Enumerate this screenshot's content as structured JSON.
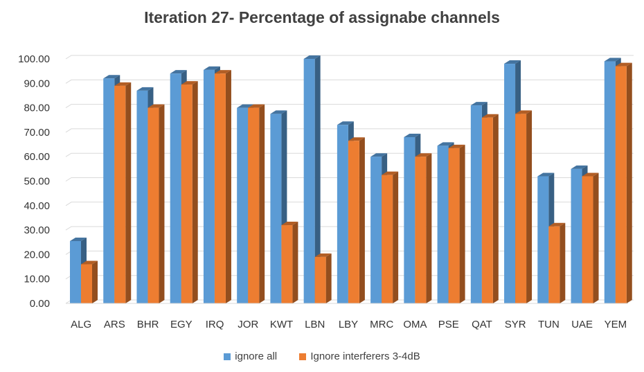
{
  "chart_data": {
    "type": "bar",
    "title": "Iteration 27- Percentage of assignabe channels",
    "xlabel": "",
    "ylabel": "",
    "ylim": [
      0,
      100
    ],
    "yticks": [
      "0.00",
      "10.00",
      "20.00",
      "30.00",
      "40.00",
      "50.00",
      "60.00",
      "70.00",
      "80.00",
      "90.00",
      "100.00"
    ],
    "categories": [
      "ALG",
      "ARS",
      "BHR",
      "EGY",
      "IRQ",
      "JOR",
      "KWT",
      "LBN",
      "LBY",
      "MRC",
      "OMA",
      "PSE",
      "QAT",
      "SYR",
      "TUN",
      "UAE",
      "YEM"
    ],
    "series": [
      {
        "name": "ignore all",
        "color": "#5B9BD5",
        "values": [
          25.5,
          92,
          87,
          94,
          95.5,
          80,
          77.5,
          100,
          73,
          60,
          68,
          64.5,
          81,
          98,
          52,
          55,
          99
        ]
      },
      {
        "name": "Ignore interferers 3-4dB",
        "color": "#ED7D31",
        "values": [
          16,
          89,
          80,
          89.5,
          94,
          80,
          32,
          19,
          66.5,
          52.5,
          60,
          63.5,
          76,
          77.5,
          31.5,
          52,
          97
        ]
      }
    ],
    "grid": true,
    "legend_position": "bottom"
  }
}
